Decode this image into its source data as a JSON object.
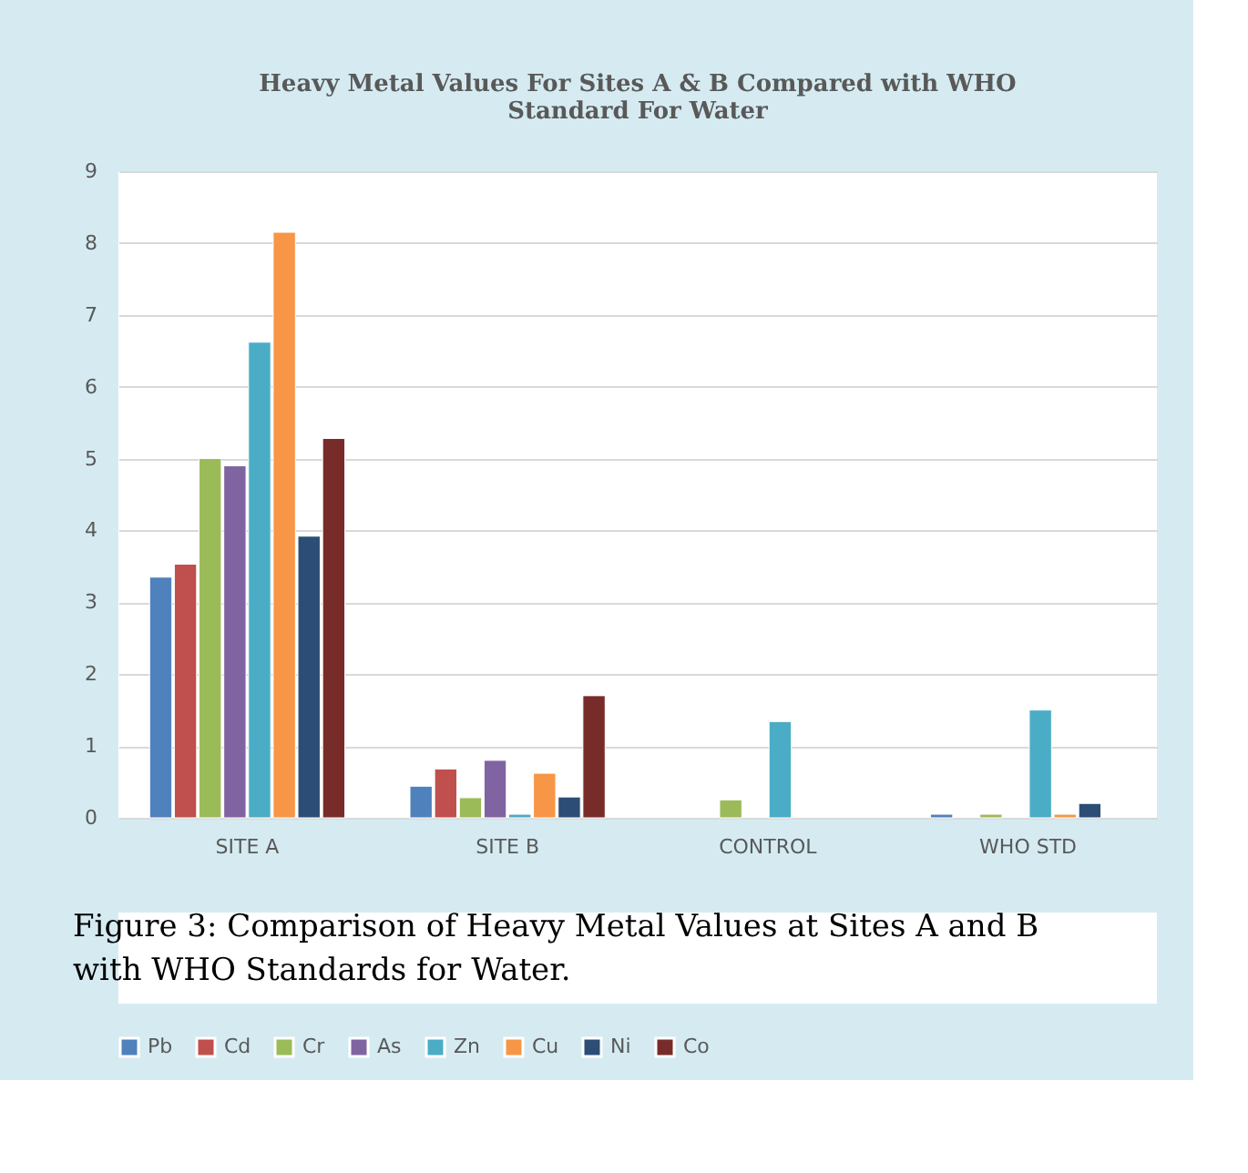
{
  "chart_data": {
    "type": "bar",
    "title": "Heavy Metal Values For Sites A & B Compared with WHO Standard For Water",
    "categories": [
      "SITE A",
      "SITE B",
      "CONTROL",
      "WHO STD"
    ],
    "series": [
      {
        "name": "Pb",
        "color": "#4f81bd",
        "values": [
          3.35,
          0.44,
          null,
          0.05
        ]
      },
      {
        "name": "Cd",
        "color": "#c0504d",
        "values": [
          3.53,
          0.68,
          null,
          null
        ]
      },
      {
        "name": "Cr",
        "color": "#9bbb59",
        "values": [
          5.0,
          0.28,
          0.25,
          0.05
        ]
      },
      {
        "name": "As",
        "color": "#8064a2",
        "values": [
          4.9,
          0.8,
          null,
          null
        ]
      },
      {
        "name": "Zn",
        "color": "#4bacc6",
        "values": [
          6.62,
          0.05,
          1.34,
          1.5
        ]
      },
      {
        "name": "Cu",
        "color": "#f79646",
        "values": [
          8.15,
          0.62,
          null,
          0.05
        ]
      },
      {
        "name": "Ni",
        "color": "#2c4d75",
        "values": [
          3.92,
          0.29,
          null,
          0.2
        ]
      },
      {
        "name": "Co",
        "color": "#772c2a",
        "values": [
          5.28,
          1.7,
          null,
          null
        ]
      }
    ],
    "ylim": [
      0,
      9
    ],
    "yticks": [
      0,
      1,
      2,
      3,
      4,
      5,
      6,
      7,
      8,
      9
    ],
    "grid": "y",
    "legend": "bottom",
    "annotations": [
      "Figure 3: Comparison of Heavy Metal Values at Sites A and B with WHO Standards for Water."
    ]
  }
}
